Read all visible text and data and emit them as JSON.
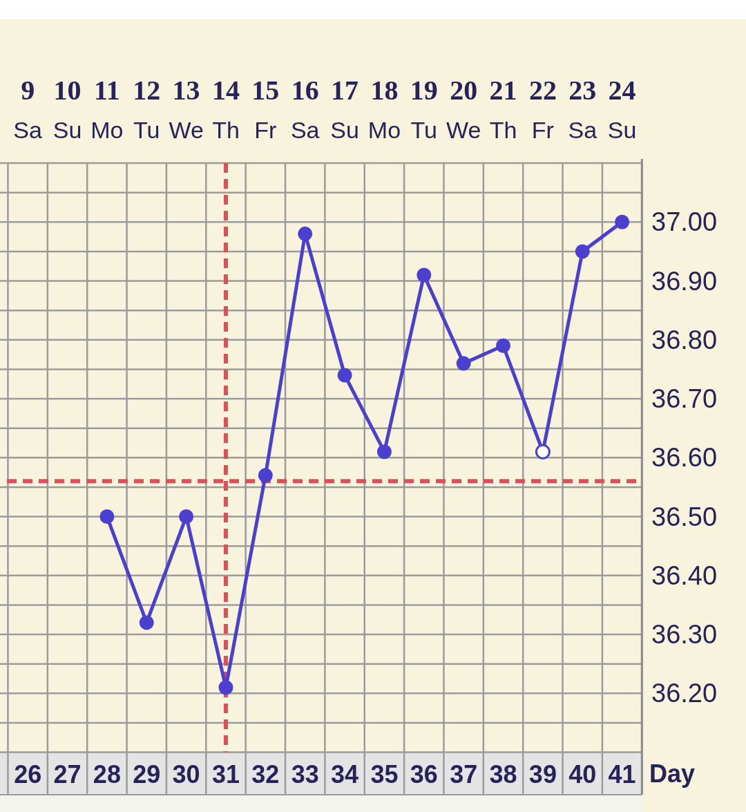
{
  "chart_data": {
    "type": "line",
    "xlabel": "Day",
    "x": [
      28,
      29,
      30,
      31,
      32,
      33,
      34,
      35,
      36,
      37,
      38,
      39,
      40,
      41
    ],
    "series": [
      {
        "color": "#4b3fd0",
        "values": [
          36.5,
          36.32,
          36.5,
          36.21,
          36.57,
          36.98,
          36.74,
          36.61,
          36.91,
          36.76,
          36.79,
          36.61,
          36.95,
          37.0
        ],
        "colors": [
          "#4b3fd0",
          "#4b3fd0",
          "#4b3fd0",
          "#4b3fd0",
          "#4b3fd0",
          "#4b3fd0",
          "#4b3fd0",
          "#4b3fd0",
          "#4b3fd0",
          "#4b3fd0",
          "#4b3fd0",
          "#ffffff",
          "#4b3fd0",
          "#4b3fd0"
        ]
      }
    ],
    "xlim": [
      25.3,
      41.5
    ],
    "xticks": [
      {
        "value": 25.5,
        "label": null
      },
      26,
      {
        "value": 26.5,
        "label": null
      },
      27,
      {
        "value": 27.5,
        "label": null
      },
      28,
      {
        "value": 28.5,
        "label": null
      },
      29,
      {
        "value": 29.5,
        "label": null
      },
      30,
      {
        "value": 30.5,
        "label": null
      },
      31,
      {
        "value": 31.5,
        "label": null
      },
      32,
      {
        "value": 32.5,
        "label": null
      },
      33,
      {
        "value": 33.5,
        "label": null
      },
      34,
      {
        "value": 34.5,
        "label": null
      },
      35,
      {
        "value": 35.5,
        "label": null
      },
      36,
      {
        "value": 36.5,
        "label": null
      },
      37,
      {
        "value": 37.5,
        "label": null
      },
      38,
      {
        "value": 38.5,
        "label": null
      },
      39,
      {
        "value": 39.5,
        "label": null
      },
      40,
      {
        "value": 40.5,
        "label": null
      },
      41,
      {
        "value": 41.5,
        "label": null
      }
    ],
    "x2lim": [
      8.3,
      24.5
    ],
    "x2ticks": [
      {
        "value": 9,
        "label": "9\nSa"
      },
      {
        "value": 10,
        "label": "10\nSu"
      },
      {
        "value": 11,
        "label": "11\nMo"
      },
      {
        "value": 12,
        "label": "12\nTu"
      },
      {
        "value": 13,
        "label": "13\nWe"
      },
      {
        "value": 14,
        "label": "14\nTh"
      },
      {
        "value": 15,
        "label": "15\nFr"
      },
      {
        "value": 16,
        "label": "16\nSa"
      },
      {
        "value": 17,
        "label": "17\nSu"
      },
      {
        "value": 18,
        "label": "18\nMo"
      },
      {
        "value": 19,
        "label": "19\nTu"
      },
      {
        "value": 20,
        "label": "20\nWe"
      },
      {
        "value": 21,
        "label": "21\nTh"
      },
      {
        "value": 22,
        "label": "22\nFr"
      },
      {
        "value": 23,
        "label": "23\nSa"
      },
      {
        "value": 24,
        "label": "24\nSu"
      }
    ],
    "ylim": [
      36.1,
      37.1
    ],
    "yticks": [
      {
        "value": 36.15,
        "label": null
      },
      {
        "value": 36.2,
        "label": "36.20"
      },
      {
        "value": 36.25,
        "label": null
      },
      {
        "value": 36.3,
        "label": "36.30"
      },
      {
        "value": 36.35,
        "label": null
      },
      {
        "value": 36.4,
        "label": "36.40"
      },
      {
        "value": 36.45,
        "label": null
      },
      {
        "value": 36.5,
        "label": "36.50"
      },
      {
        "value": 36.55,
        "label": null
      },
      {
        "value": 36.6,
        "label": "36.60"
      },
      {
        "value": 36.65,
        "label": null
      },
      {
        "value": 36.7,
        "label": "36.70"
      },
      {
        "value": 36.75,
        "label": null
      },
      {
        "value": 36.8,
        "label": "36.80"
      },
      {
        "value": 36.85,
        "label": null
      },
      {
        "value": 36.9,
        "label": "36.90"
      },
      {
        "value": 36.95,
        "label": null
      },
      {
        "value": 37.0,
        "label": "37.00"
      },
      {
        "value": 37.05,
        "label": null
      }
    ],
    "grid": true,
    "marker": "circle",
    "ref_lines": [
      {
        "axis": "x",
        "value": 31,
        "color": "#dc5058",
        "line_style": "dashed"
      },
      {
        "axis": "y",
        "value": 36.56,
        "color": "#dc5058",
        "line_style": "dashed"
      }
    ]
  }
}
